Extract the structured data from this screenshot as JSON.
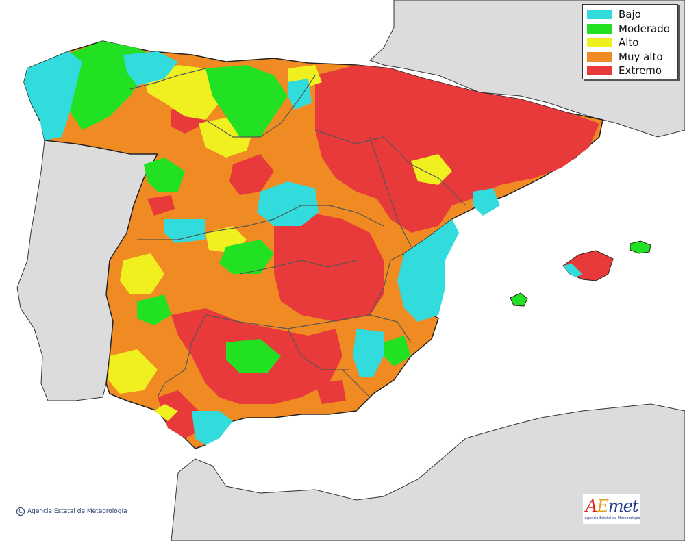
{
  "legend": {
    "items": [
      {
        "label": "Bajo",
        "color": "#33dcdc"
      },
      {
        "label": "Moderado",
        "color": "#22e022"
      },
      {
        "label": "Alto",
        "color": "#f0f020"
      },
      {
        "label": "Muy alto",
        "color": "#f08a22"
      },
      {
        "label": "Extremo",
        "color": "#e83a3a"
      }
    ]
  },
  "colors": {
    "sea": "#ffffff",
    "land_outside": "#dcdcdc",
    "border": "#222222",
    "region_border": "#666666"
  },
  "footer": {
    "copyright_symbol": "C",
    "copyright": "Agencia Estatal de Meteorología"
  },
  "logo": {
    "text_part1": "A",
    "text_part2": "E",
    "text_part3": "met",
    "subtitle": "Agencia Estatal de Meteorología"
  }
}
